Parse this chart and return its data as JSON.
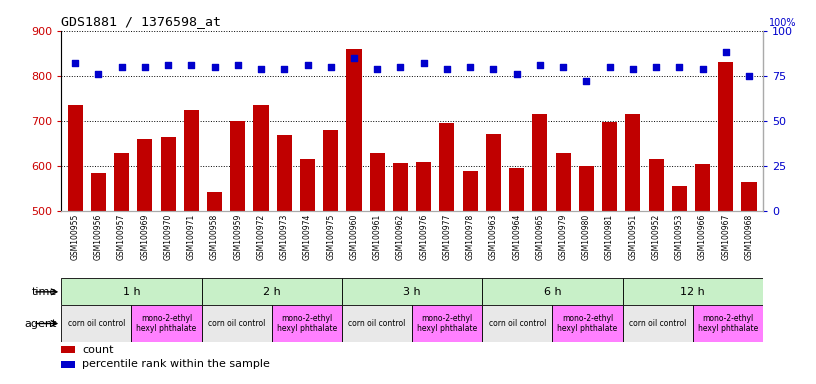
{
  "title": "GDS1881 / 1376598_at",
  "samples": [
    "GSM100955",
    "GSM100956",
    "GSM100957",
    "GSM100969",
    "GSM100970",
    "GSM100971",
    "GSM100958",
    "GSM100959",
    "GSM100972",
    "GSM100973",
    "GSM100974",
    "GSM100975",
    "GSM100960",
    "GSM100961",
    "GSM100962",
    "GSM100976",
    "GSM100977",
    "GSM100978",
    "GSM100963",
    "GSM100964",
    "GSM100965",
    "GSM100979",
    "GSM100980",
    "GSM100981",
    "GSM100951",
    "GSM100952",
    "GSM100953",
    "GSM100966",
    "GSM100967",
    "GSM100968"
  ],
  "counts": [
    735,
    585,
    628,
    660,
    665,
    725,
    542,
    700,
    735,
    668,
    615,
    680,
    860,
    630,
    607,
    610,
    695,
    590,
    670,
    595,
    715,
    628,
    600,
    698,
    715,
    615,
    555,
    605,
    830,
    565
  ],
  "percentiles": [
    82,
    76,
    80,
    80,
    81,
    81,
    80,
    81,
    79,
    79,
    81,
    80,
    85,
    79,
    80,
    82,
    79,
    80,
    79,
    76,
    81,
    80,
    72,
    80,
    79,
    80,
    80,
    79,
    88,
    75
  ],
  "ylim_left": [
    500,
    900
  ],
  "ylim_right": [
    0,
    100
  ],
  "yticks_left": [
    500,
    600,
    700,
    800,
    900
  ],
  "yticks_right": [
    0,
    25,
    50,
    75,
    100
  ],
  "bar_color": "#c00000",
  "dot_color": "#0000cc",
  "time_groups": [
    {
      "label": "1 h",
      "start": 0,
      "end": 6
    },
    {
      "label": "2 h",
      "start": 6,
      "end": 12
    },
    {
      "label": "3 h",
      "start": 12,
      "end": 18
    },
    {
      "label": "6 h",
      "start": 18,
      "end": 24
    },
    {
      "label": "12 h",
      "start": 24,
      "end": 30
    }
  ],
  "agent_groups": [
    {
      "label": "corn oil control",
      "start": 0,
      "end": 3,
      "color": "#e8e8e8"
    },
    {
      "label": "mono-2-ethyl\nhexyl phthalate",
      "start": 3,
      "end": 6,
      "color": "#ff80ff"
    },
    {
      "label": "corn oil control",
      "start": 6,
      "end": 9,
      "color": "#e8e8e8"
    },
    {
      "label": "mono-2-ethyl\nhexyl phthalate",
      "start": 9,
      "end": 12,
      "color": "#ff80ff"
    },
    {
      "label": "corn oil control",
      "start": 12,
      "end": 15,
      "color": "#e8e8e8"
    },
    {
      "label": "mono-2-ethyl\nhexyl phthalate",
      "start": 15,
      "end": 18,
      "color": "#ff80ff"
    },
    {
      "label": "corn oil control",
      "start": 18,
      "end": 21,
      "color": "#e8e8e8"
    },
    {
      "label": "mono-2-ethyl\nhexyl phthalate",
      "start": 21,
      "end": 24,
      "color": "#ff80ff"
    },
    {
      "label": "corn oil control",
      "start": 24,
      "end": 27,
      "color": "#e8e8e8"
    },
    {
      "label": "mono-2-ethyl\nhexyl phthalate",
      "start": 27,
      "end": 30,
      "color": "#ff80ff"
    }
  ],
  "time_bg_color": "#c8f0c8",
  "figsize": [
    8.16,
    3.84
  ],
  "dpi": 100
}
